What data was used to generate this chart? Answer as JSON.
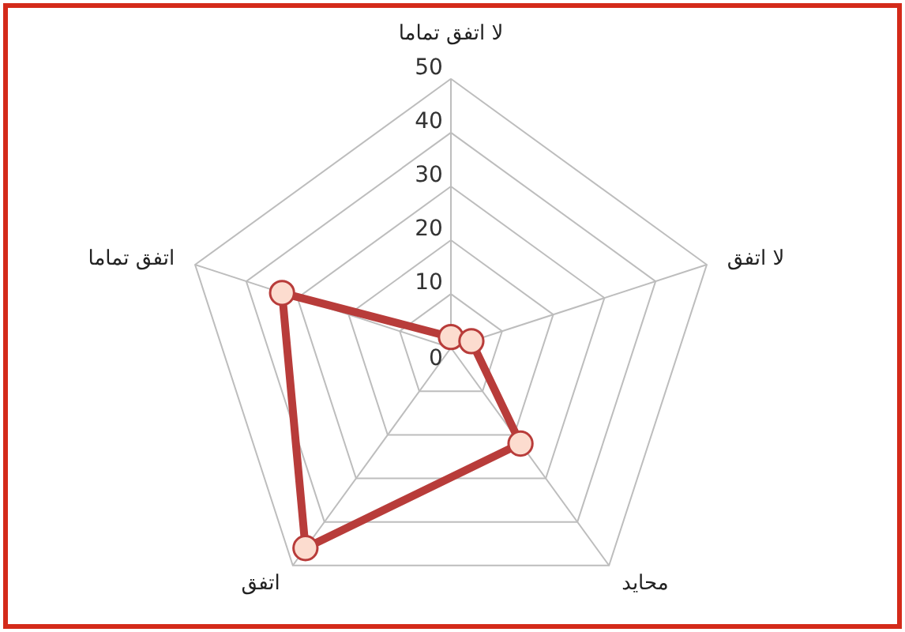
{
  "chart_data": {
    "type": "radar",
    "categories": [
      "لا اتفق تماما",
      "لا اتفق",
      "محايد",
      "اتفق",
      "اتفق تماما"
    ],
    "series": [
      {
        "color": "#b83c3a",
        "values": [
          2,
          4,
          22,
          46,
          33
        ]
      }
    ],
    "ylim": [
      0,
      50
    ],
    "yticks": [
      0,
      10,
      20,
      30,
      40,
      50
    ],
    "grid": true,
    "marker": "circle",
    "line_style": "solid"
  }
}
